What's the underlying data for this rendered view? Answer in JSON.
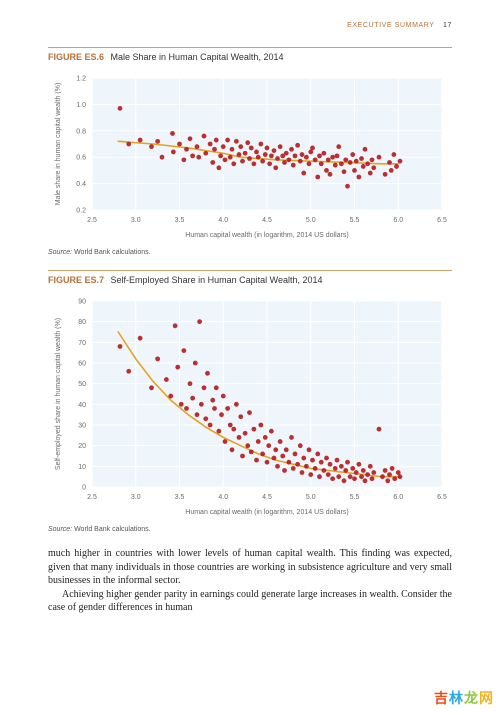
{
  "page": {
    "running_head": "EXECUTIVE SUMMARY",
    "page_number": "17"
  },
  "figure1": {
    "label_no": "FIGURE ES.6",
    "label_title": "Male Share in Human Capital Wealth, 2014",
    "chart": {
      "type": "scatter",
      "background_color": "#eef6fb",
      "grid_color": "#ffffff",
      "axis_color": "#6a6a6a",
      "tick_color": "#6a6a6a",
      "xlabel": "Human capital wealth (in logarithm, 2014 US dollars)",
      "ylabel": "Male share in human capital wealth (%)",
      "label_fontsize": 7,
      "tick_fontsize": 7,
      "xlim": [
        2.5,
        6.5
      ],
      "ylim": [
        0.2,
        1.2
      ],
      "xticks": [
        2.5,
        3.0,
        3.5,
        4.0,
        4.5,
        5.0,
        5.5,
        6.0,
        6.5
      ],
      "yticks": [
        0.2,
        0.4,
        0.6,
        0.8,
        1.0,
        1.2
      ],
      "marker_color": "#b41d21",
      "marker_radius": 2.4,
      "marker_opacity": 0.92,
      "trend_color": "#e6a227",
      "trend_width": 1.6,
      "trend": [
        [
          2.8,
          0.72
        ],
        [
          3.2,
          0.7
        ],
        [
          3.6,
          0.67
        ],
        [
          4.0,
          0.63
        ],
        [
          4.2,
          0.6
        ],
        [
          4.6,
          0.58
        ],
        [
          5.0,
          0.57
        ],
        [
          5.4,
          0.56
        ],
        [
          5.8,
          0.55
        ],
        [
          6.0,
          0.55
        ]
      ],
      "data": [
        [
          2.82,
          0.97
        ],
        [
          2.92,
          0.7
        ],
        [
          3.05,
          0.73
        ],
        [
          3.18,
          0.68
        ],
        [
          3.25,
          0.72
        ],
        [
          3.3,
          0.6
        ],
        [
          3.42,
          0.78
        ],
        [
          3.43,
          0.64
        ],
        [
          3.5,
          0.7
        ],
        [
          3.55,
          0.58
        ],
        [
          3.58,
          0.66
        ],
        [
          3.62,
          0.74
        ],
        [
          3.65,
          0.61
        ],
        [
          3.7,
          0.68
        ],
        [
          3.72,
          0.6
        ],
        [
          3.78,
          0.76
        ],
        [
          3.8,
          0.63
        ],
        [
          3.85,
          0.7
        ],
        [
          3.88,
          0.56
        ],
        [
          3.9,
          0.66
        ],
        [
          3.92,
          0.73
        ],
        [
          3.95,
          0.52
        ],
        [
          3.97,
          0.61
        ],
        [
          4.0,
          0.68
        ],
        [
          4.02,
          0.58
        ],
        [
          4.05,
          0.73
        ],
        [
          4.08,
          0.6
        ],
        [
          4.1,
          0.66
        ],
        [
          4.12,
          0.55
        ],
        [
          4.15,
          0.72
        ],
        [
          4.18,
          0.62
        ],
        [
          4.2,
          0.68
        ],
        [
          4.22,
          0.57
        ],
        [
          4.25,
          0.63
        ],
        [
          4.28,
          0.71
        ],
        [
          4.3,
          0.59
        ],
        [
          4.32,
          0.67
        ],
        [
          4.35,
          0.55
        ],
        [
          4.38,
          0.64
        ],
        [
          4.4,
          0.6
        ],
        [
          4.43,
          0.7
        ],
        [
          4.45,
          0.57
        ],
        [
          4.48,
          0.62
        ],
        [
          4.5,
          0.67
        ],
        [
          4.53,
          0.55
        ],
        [
          4.55,
          0.61
        ],
        [
          4.58,
          0.65
        ],
        [
          4.6,
          0.52
        ],
        [
          4.62,
          0.59
        ],
        [
          4.65,
          0.68
        ],
        [
          4.68,
          0.61
        ],
        [
          4.7,
          0.56
        ],
        [
          4.72,
          0.63
        ],
        [
          4.75,
          0.58
        ],
        [
          4.78,
          0.66
        ],
        [
          4.8,
          0.54
        ],
        [
          4.82,
          0.61
        ],
        [
          4.85,
          0.69
        ],
        [
          4.88,
          0.57
        ],
        [
          4.9,
          0.62
        ],
        [
          4.92,
          0.48
        ],
        [
          4.95,
          0.6
        ],
        [
          4.98,
          0.55
        ],
        [
          5.0,
          0.64
        ],
        [
          5.02,
          0.67
        ],
        [
          5.05,
          0.58
        ],
        [
          5.08,
          0.45
        ],
        [
          5.1,
          0.61
        ],
        [
          5.12,
          0.55
        ],
        [
          5.15,
          0.63
        ],
        [
          5.18,
          0.5
        ],
        [
          5.2,
          0.58
        ],
        [
          5.22,
          0.47
        ],
        [
          5.25,
          0.6
        ],
        [
          5.28,
          0.54
        ],
        [
          5.3,
          0.61
        ],
        [
          5.32,
          0.68
        ],
        [
          5.35,
          0.55
        ],
        [
          5.38,
          0.49
        ],
        [
          5.4,
          0.58
        ],
        [
          5.42,
          0.38
        ],
        [
          5.45,
          0.56
        ],
        [
          5.48,
          0.62
        ],
        [
          5.5,
          0.5
        ],
        [
          5.52,
          0.57
        ],
        [
          5.55,
          0.45
        ],
        [
          5.58,
          0.59
        ],
        [
          5.6,
          0.53
        ],
        [
          5.62,
          0.66
        ],
        [
          5.65,
          0.55
        ],
        [
          5.68,
          0.48
        ],
        [
          5.7,
          0.58
        ],
        [
          5.72,
          0.52
        ],
        [
          5.78,
          0.6
        ],
        [
          5.85,
          0.47
        ],
        [
          5.9,
          0.56
        ],
        [
          5.92,
          0.5
        ],
        [
          5.95,
          0.62
        ],
        [
          5.98,
          0.53
        ],
        [
          6.02,
          0.57
        ]
      ]
    },
    "source_label": "Source:",
    "source_text": "World Bank calculations."
  },
  "figure2": {
    "label_no": "FIGURE ES.7",
    "label_title": "Self-Employed Share in Human Capital Wealth, 2014",
    "chart": {
      "type": "scatter",
      "background_color": "#eef6fb",
      "grid_color": "#ffffff",
      "axis_color": "#6a6a6a",
      "tick_color": "#6a6a6a",
      "xlabel": "Human capital wealth (in logarithm, 2014 US dollars)",
      "ylabel": "Self-employed share in human capital wealth (%)",
      "label_fontsize": 7,
      "tick_fontsize": 7,
      "xlim": [
        2.5,
        6.5
      ],
      "ylim": [
        0,
        90
      ],
      "xticks": [
        2.5,
        3.0,
        3.5,
        4.0,
        4.5,
        5.0,
        5.5,
        6.0,
        6.5
      ],
      "yticks": [
        0,
        10,
        20,
        30,
        40,
        50,
        60,
        70,
        80,
        90
      ],
      "marker_color": "#b41d21",
      "marker_radius": 2.4,
      "marker_opacity": 0.92,
      "trend_color": "#e6a227",
      "trend_width": 1.6,
      "trend": [
        [
          2.8,
          75
        ],
        [
          3.0,
          62
        ],
        [
          3.2,
          51
        ],
        [
          3.4,
          42
        ],
        [
          3.6,
          35
        ],
        [
          3.8,
          29
        ],
        [
          4.0,
          24
        ],
        [
          4.2,
          20
        ],
        [
          4.4,
          16
        ],
        [
          4.6,
          13
        ],
        [
          4.8,
          11
        ],
        [
          5.0,
          9
        ],
        [
          5.2,
          8
        ],
        [
          5.4,
          7
        ],
        [
          5.6,
          6
        ],
        [
          5.8,
          5
        ],
        [
          6.0,
          5
        ]
      ],
      "data": [
        [
          2.82,
          68
        ],
        [
          2.92,
          56
        ],
        [
          3.05,
          72
        ],
        [
          3.18,
          48
        ],
        [
          3.25,
          62
        ],
        [
          3.35,
          52
        ],
        [
          3.4,
          44
        ],
        [
          3.45,
          78
        ],
        [
          3.48,
          58
        ],
        [
          3.52,
          40
        ],
        [
          3.55,
          66
        ],
        [
          3.58,
          38
        ],
        [
          3.62,
          50
        ],
        [
          3.65,
          43
        ],
        [
          3.68,
          60
        ],
        [
          3.7,
          35
        ],
        [
          3.73,
          80
        ],
        [
          3.75,
          40
        ],
        [
          3.78,
          48
        ],
        [
          3.8,
          33
        ],
        [
          3.82,
          55
        ],
        [
          3.85,
          30
        ],
        [
          3.88,
          42
        ],
        [
          3.9,
          38
        ],
        [
          3.92,
          48
        ],
        [
          3.95,
          27
        ],
        [
          3.98,
          35
        ],
        [
          4.0,
          44
        ],
        [
          4.02,
          22
        ],
        [
          4.05,
          38
        ],
        [
          4.08,
          30
        ],
        [
          4.1,
          18
        ],
        [
          4.12,
          28
        ],
        [
          4.15,
          40
        ],
        [
          4.18,
          24
        ],
        [
          4.2,
          34
        ],
        [
          4.22,
          15
        ],
        [
          4.25,
          26
        ],
        [
          4.28,
          20
        ],
        [
          4.3,
          36
        ],
        [
          4.32,
          17
        ],
        [
          4.35,
          28
        ],
        [
          4.38,
          13
        ],
        [
          4.4,
          22
        ],
        [
          4.43,
          30
        ],
        [
          4.45,
          16
        ],
        [
          4.48,
          24
        ],
        [
          4.5,
          12
        ],
        [
          4.52,
          20
        ],
        [
          4.55,
          27
        ],
        [
          4.58,
          14
        ],
        [
          4.6,
          18
        ],
        [
          4.62,
          10
        ],
        [
          4.65,
          22
        ],
        [
          4.68,
          15
        ],
        [
          4.7,
          8
        ],
        [
          4.72,
          18
        ],
        [
          4.75,
          12
        ],
        [
          4.78,
          24
        ],
        [
          4.8,
          9
        ],
        [
          4.82,
          16
        ],
        [
          4.85,
          11
        ],
        [
          4.88,
          20
        ],
        [
          4.9,
          7
        ],
        [
          4.92,
          14
        ],
        [
          4.95,
          10
        ],
        [
          4.98,
          18
        ],
        [
          5.0,
          6
        ],
        [
          5.02,
          13
        ],
        [
          5.05,
          9
        ],
        [
          5.08,
          16
        ],
        [
          5.1,
          5
        ],
        [
          5.12,
          12
        ],
        [
          5.15,
          8
        ],
        [
          5.18,
          14
        ],
        [
          5.2,
          6
        ],
        [
          5.22,
          11
        ],
        [
          5.25,
          4
        ],
        [
          5.28,
          9
        ],
        [
          5.3,
          13
        ],
        [
          5.32,
          5
        ],
        [
          5.35,
          10
        ],
        [
          5.38,
          3
        ],
        [
          5.4,
          8
        ],
        [
          5.42,
          12
        ],
        [
          5.45,
          5
        ],
        [
          5.48,
          9
        ],
        [
          5.5,
          4
        ],
        [
          5.52,
          7
        ],
        [
          5.55,
          11
        ],
        [
          5.58,
          5
        ],
        [
          5.6,
          8
        ],
        [
          5.62,
          3
        ],
        [
          5.65,
          6
        ],
        [
          5.68,
          10
        ],
        [
          5.7,
          4
        ],
        [
          5.72,
          7
        ],
        [
          5.78,
          28
        ],
        [
          5.82,
          5
        ],
        [
          5.85,
          8
        ],
        [
          5.88,
          3
        ],
        [
          5.9,
          6
        ],
        [
          5.93,
          9
        ],
        [
          5.96,
          4
        ],
        [
          6.0,
          7
        ],
        [
          6.02,
          5
        ]
      ]
    },
    "source_label": "Source:",
    "source_text": "World Bank calculations."
  },
  "body": {
    "p1": "much higher in countries with lower levels of human capital wealth. This finding was expected, given that many individuals in those countries are working in subsistence agriculture and very small businesses in the informal sector.",
    "p2": "Achieving higher gender parity in earnings could generate large increases in wealth. Consider the case of gender differences in human"
  },
  "watermark": {
    "t1": "吉",
    "t2": "林",
    "t3": "龙",
    "t4": "网"
  }
}
